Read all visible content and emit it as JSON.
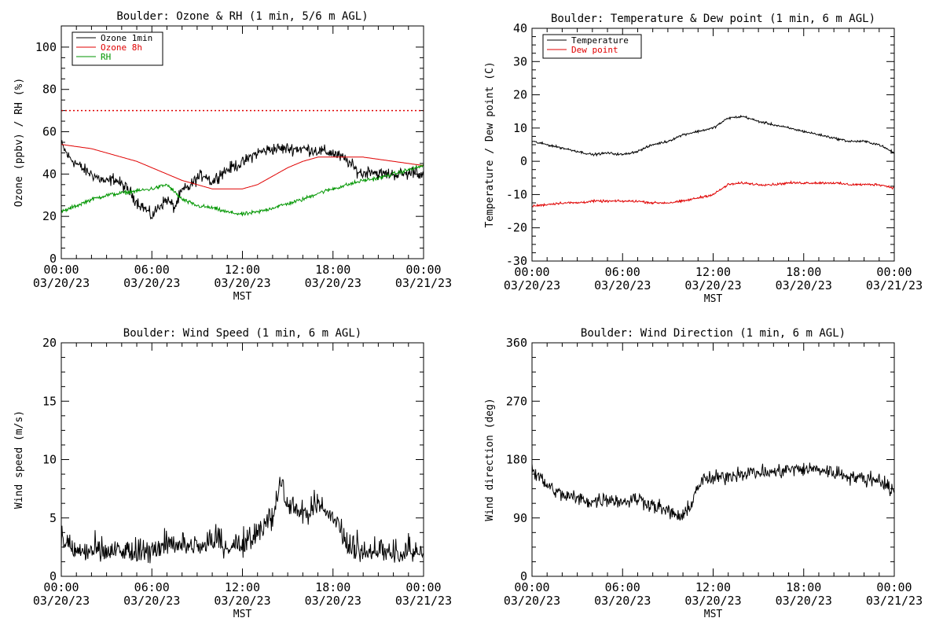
{
  "figure": {
    "colors": {
      "black": "#000000",
      "red": "#e00000",
      "green": "#009600",
      "background": "#ffffff"
    }
  },
  "chart_data": [
    {
      "id": "ozone_rh",
      "type": "line",
      "title": "Boulder: Ozone & RH (1 min, 5/6 m AGL)",
      "xlabel": "MST",
      "ylabel": "Ozone (ppbv) / RH (%)",
      "xlim": [
        0,
        24
      ],
      "ylim": [
        0,
        110
      ],
      "x_ticks": [
        {
          "time": "00:00",
          "date": "03/20/23"
        },
        {
          "time": "06:00",
          "date": "03/20/23"
        },
        {
          "time": "12:00",
          "date": "03/20/23"
        },
        {
          "time": "18:00",
          "date": "03/20/23"
        },
        {
          "time": "00:00",
          "date": "03/21/23"
        }
      ],
      "y_ticks": [
        0,
        20,
        40,
        60,
        80,
        100
      ],
      "legend_position": "top-left",
      "reference_line": {
        "y": 70,
        "color": "#e00000",
        "style": "dotted"
      },
      "series": [
        {
          "name": "Ozone 1min",
          "color": "#000000",
          "noise": 2.5,
          "x": [
            0,
            0.5,
            1,
            1.5,
            2,
            2.5,
            3,
            3.5,
            4,
            4.5,
            5,
            5.5,
            6,
            6.5,
            7,
            7.5,
            8,
            8.5,
            9,
            9.5,
            10,
            10.5,
            11,
            11.5,
            12,
            12.5,
            13,
            13.5,
            14,
            15,
            16,
            17,
            18,
            18.5,
            19,
            19.5,
            20,
            20.5,
            21,
            22,
            23,
            23.5,
            24
          ],
          "y": [
            54,
            48,
            45,
            42,
            40,
            38,
            36,
            38,
            35,
            32,
            27,
            24,
            20,
            25,
            28,
            24,
            32,
            34,
            38,
            40,
            36,
            40,
            42,
            44,
            45,
            48,
            50,
            51,
            52,
            52,
            52,
            51,
            50,
            48,
            46,
            42,
            40,
            42,
            40,
            40,
            40,
            42,
            38
          ]
        },
        {
          "name": "Ozone 8h",
          "color": "#e00000",
          "noise": 0,
          "x": [
            0,
            1,
            2,
            3,
            4,
            5,
            6,
            7,
            8,
            9,
            10,
            11,
            12,
            13,
            14,
            15,
            16,
            17,
            18,
            19,
            20,
            21,
            22,
            23,
            24
          ],
          "y": [
            54,
            53,
            52,
            50,
            48,
            46,
            43,
            40,
            37,
            35,
            33,
            33,
            33,
            35,
            39,
            43,
            46,
            48,
            48,
            48,
            48,
            47,
            46,
            45,
            44
          ]
        },
        {
          "name": "RH",
          "color": "#009600",
          "noise": 0.8,
          "x": [
            0,
            1,
            2,
            3,
            4,
            5,
            6,
            7,
            8,
            9,
            10,
            11,
            12,
            13,
            14,
            15,
            16,
            17,
            18,
            19,
            20,
            21,
            22,
            23,
            24
          ],
          "y": [
            22,
            25,
            28,
            30,
            31,
            32,
            33,
            35,
            28,
            25,
            24,
            22,
            21,
            22,
            24,
            26,
            28,
            31,
            33,
            35,
            37,
            38,
            40,
            42,
            44
          ]
        }
      ]
    },
    {
      "id": "temp_dew",
      "type": "line",
      "title": "Boulder: Temperature & Dew point (1 min, 6 m AGL)",
      "xlabel": "MST",
      "ylabel": "Temperature / Dew point (C)",
      "xlim": [
        0,
        24
      ],
      "ylim": [
        -30,
        40
      ],
      "x_ticks": [
        {
          "time": "00:00",
          "date": "03/20/23"
        },
        {
          "time": "06:00",
          "date": "03/20/23"
        },
        {
          "time": "12:00",
          "date": "03/20/23"
        },
        {
          "time": "18:00",
          "date": "03/20/23"
        },
        {
          "time": "00:00",
          "date": "03/21/23"
        }
      ],
      "y_ticks": [
        -30,
        -20,
        -10,
        0,
        10,
        20,
        30,
        40
      ],
      "legend_position": "top-left",
      "series": [
        {
          "name": "Temperature",
          "color": "#000000",
          "noise": 0.3,
          "x": [
            0,
            1,
            2,
            3,
            4,
            5,
            6,
            7,
            8,
            9,
            10,
            11,
            12,
            13,
            14,
            15,
            16,
            17,
            18,
            19,
            20,
            21,
            22,
            23,
            24
          ],
          "y": [
            6,
            5,
            4,
            3,
            2,
            2.5,
            2,
            3,
            5,
            6,
            8,
            9,
            10,
            13,
            13.5,
            12,
            11,
            10,
            9,
            8,
            7,
            6,
            6,
            5,
            2.5
          ]
        },
        {
          "name": "Dew point",
          "color": "#e00000",
          "noise": 0.3,
          "x": [
            0,
            1,
            2,
            3,
            4,
            5,
            6,
            7,
            8,
            9,
            10,
            11,
            12,
            13,
            14,
            15,
            16,
            17,
            18,
            19,
            20,
            21,
            22,
            23,
            24
          ],
          "y": [
            -13.5,
            -13,
            -12.5,
            -12.5,
            -12,
            -12,
            -12,
            -12,
            -12.5,
            -12.5,
            -12,
            -11,
            -10,
            -7,
            -6.5,
            -7,
            -7,
            -6.5,
            -6.5,
            -6.5,
            -6.5,
            -7,
            -7,
            -7,
            -8
          ]
        }
      ]
    },
    {
      "id": "wind_speed",
      "type": "line",
      "title": "Boulder: Wind Speed (1 min, 6 m AGL)",
      "xlabel": "MST",
      "ylabel": "Wind speed (m/s)",
      "xlim": [
        0,
        24
      ],
      "ylim": [
        0,
        20
      ],
      "x_ticks": [
        {
          "time": "00:00",
          "date": "03/20/23"
        },
        {
          "time": "06:00",
          "date": "03/20/23"
        },
        {
          "time": "12:00",
          "date": "03/20/23"
        },
        {
          "time": "18:00",
          "date": "03/20/23"
        },
        {
          "time": "00:00",
          "date": "03/21/23"
        }
      ],
      "y_ticks": [
        0,
        5,
        10,
        15,
        20
      ],
      "series": [
        {
          "name": "",
          "color": "#000000",
          "noise": 1.0,
          "x": [
            0,
            1,
            2,
            3,
            4,
            5,
            6,
            7,
            8,
            9,
            10,
            11,
            12,
            13,
            14,
            14.5,
            15,
            16,
            17,
            18,
            19,
            20,
            21,
            22,
            23,
            24
          ],
          "y": [
            3,
            2,
            2,
            2,
            2,
            2,
            2,
            2.5,
            2.5,
            2.5,
            3,
            2.5,
            2.5,
            3.5,
            5,
            8,
            6,
            5,
            6,
            5,
            2.5,
            2,
            2,
            2,
            2,
            2
          ]
        }
      ]
    },
    {
      "id": "wind_direction",
      "type": "line",
      "title": "Boulder: Wind Direction (1 min, 6 m AGL)",
      "xlabel": "MST",
      "ylabel": "Wind direction (deg)",
      "xlim": [
        0,
        24
      ],
      "ylim": [
        0,
        360
      ],
      "x_ticks": [
        {
          "time": "00:00",
          "date": "03/20/23"
        },
        {
          "time": "06:00",
          "date": "03/20/23"
        },
        {
          "time": "12:00",
          "date": "03/20/23"
        },
        {
          "time": "18:00",
          "date": "03/20/23"
        },
        {
          "time": "00:00",
          "date": "03/21/23"
        }
      ],
      "y_ticks": [
        0,
        90,
        180,
        270,
        360
      ],
      "series": [
        {
          "name": "",
          "color": "#000000",
          "noise": 10,
          "x": [
            0,
            1,
            2,
            3,
            4,
            5,
            6,
            7,
            8,
            9,
            10,
            10.5,
            11,
            11.5,
            12,
            13,
            14,
            15,
            16,
            17,
            18,
            19,
            20,
            21,
            22,
            23,
            24
          ],
          "y": [
            165,
            140,
            125,
            120,
            115,
            120,
            115,
            120,
            110,
            100,
            90,
            110,
            140,
            150,
            150,
            155,
            160,
            160,
            160,
            165,
            165,
            165,
            160,
            155,
            150,
            150,
            130
          ]
        }
      ]
    }
  ]
}
